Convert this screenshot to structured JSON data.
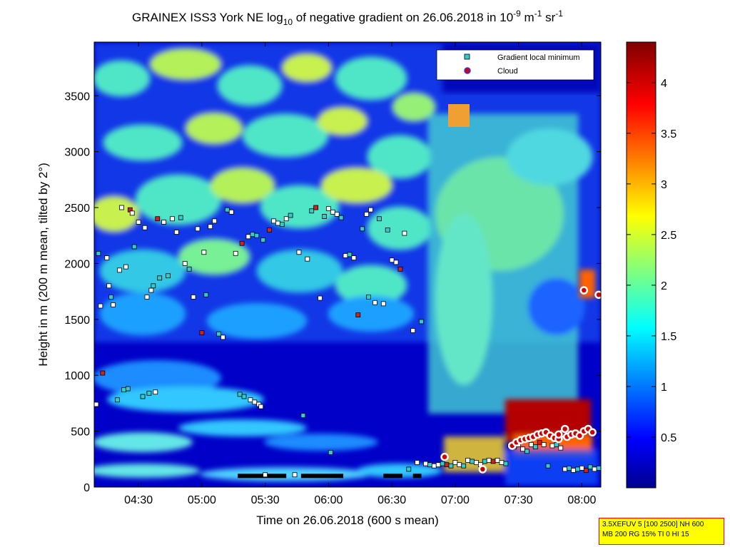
{
  "chart_data": {
    "type": "heatmap",
    "title_parts": {
      "pre": "GRAINEX ISS3 York NE log",
      "sub10": "10",
      "mid": " of negative gradient on 26.06.2018 in 10",
      "supexp": "-9",
      "m": " m",
      "supm": "-1",
      "sr": " sr",
      "supsr": "-1"
    },
    "xlabel": "Time on 26.06.2018 (600 s mean)",
    "ylabel": "Height in m (200 m mean, tilted by 2°)",
    "xlim": [
      "04:09",
      "08:09"
    ],
    "ylim": [
      0,
      3980
    ],
    "x_ticks": [
      "04:30",
      "05:00",
      "05:30",
      "06:00",
      "06:30",
      "07:00",
      "07:30",
      "08:00"
    ],
    "y_ticks": [
      "0",
      "500",
      "1000",
      "1500",
      "2000",
      "2500",
      "3000",
      "3500"
    ],
    "colorbar": {
      "ticks": [
        "0.5",
        "1",
        "1.5",
        "2",
        "2.5",
        "3",
        "3.5",
        "4"
      ],
      "range": [
        0,
        4.4
      ],
      "colormap": "jet"
    },
    "legend": {
      "placement": "top-right",
      "entries": [
        {
          "label": "Gradient local minimum",
          "marker": "square",
          "color": "#33cccc"
        },
        {
          "label": "Cloud",
          "marker": "circle",
          "color": "#cc0000"
        }
      ]
    },
    "series_gradient_min": [
      [
        "04:10",
        740
      ],
      [
        "04:11",
        2090
      ],
      [
        "04:12",
        1620
      ],
      [
        "04:13",
        1020
      ],
      [
        "04:15",
        2050
      ],
      [
        "04:16",
        1800
      ],
      [
        "04:17",
        1700
      ],
      [
        "04:18",
        1630
      ],
      [
        "04:20",
        780
      ],
      [
        "04:21",
        1940
      ],
      [
        "04:22",
        2500
      ],
      [
        "04:23",
        870
      ],
      [
        "04:24",
        1970
      ],
      [
        "04:25",
        880
      ],
      [
        "04:26",
        2480
      ],
      [
        "04:27",
        2450
      ],
      [
        "04:28",
        2150
      ],
      [
        "04:30",
        2370
      ],
      [
        "04:32",
        810
      ],
      [
        "04:33",
        2320
      ],
      [
        "04:34",
        1700
      ],
      [
        "04:35",
        840
      ],
      [
        "04:36",
        1760
      ],
      [
        "04:37",
        1800
      ],
      [
        "04:38",
        850
      ],
      [
        "04:39",
        2400
      ],
      [
        "04:40",
        1870
      ],
      [
        "04:42",
        2370
      ],
      [
        "04:44",
        1890
      ],
      [
        "04:46",
        2400
      ],
      [
        "04:48",
        2280
      ],
      [
        "04:50",
        2410
      ],
      [
        "04:52",
        2000
      ],
      [
        "04:54",
        1950
      ],
      [
        "04:56",
        1700
      ],
      [
        "04:58",
        2310
      ],
      [
        "05:00",
        1380
      ],
      [
        "05:01",
        2100
      ],
      [
        "05:02",
        1720
      ],
      [
        "05:04",
        2330
      ],
      [
        "05:06",
        2380
      ],
      [
        "05:08",
        1370
      ],
      [
        "05:10",
        1340
      ],
      [
        "05:12",
        2480
      ],
      [
        "05:14",
        2460
      ],
      [
        "05:16",
        2090
      ],
      [
        "05:18",
        830
      ],
      [
        "05:19",
        2180
      ],
      [
        "05:20",
        810
      ],
      [
        "05:22",
        2240
      ],
      [
        "05:23",
        780
      ],
      [
        "05:24",
        2260
      ],
      [
        "05:25",
        760
      ],
      [
        "05:26",
        2250
      ],
      [
        "05:27",
        740
      ],
      [
        "05:28",
        720
      ],
      [
        "05:29",
        2210
      ],
      [
        "05:30",
        110
      ],
      [
        "05:32",
        2300
      ],
      [
        "05:34",
        2380
      ],
      [
        "05:36",
        2360
      ],
      [
        "05:38",
        2350
      ],
      [
        "05:40",
        2400
      ],
      [
        "05:42",
        2430
      ],
      [
        "05:44",
        110
      ],
      [
        "05:46",
        2100
      ],
      [
        "05:48",
        640
      ],
      [
        "05:50",
        2040
      ],
      [
        "05:52",
        2470
      ],
      [
        "05:54",
        2500
      ],
      [
        "05:56",
        1690
      ],
      [
        "05:58",
        2420
      ],
      [
        "06:00",
        2490
      ],
      [
        "06:01",
        310
      ],
      [
        "06:02",
        2460
      ],
      [
        "06:04",
        2440
      ],
      [
        "06:06",
        2410
      ],
      [
        "06:08",
        2070
      ],
      [
        "06:10",
        2080
      ],
      [
        "06:12",
        2050
      ],
      [
        "06:14",
        1540
      ],
      [
        "06:16",
        2310
      ],
      [
        "06:18",
        2440
      ],
      [
        "06:19",
        1700
      ],
      [
        "06:20",
        2480
      ],
      [
        "06:22",
        1650
      ],
      [
        "06:24",
        2400
      ],
      [
        "06:26",
        1640
      ],
      [
        "06:28",
        2300
      ],
      [
        "06:30",
        2030
      ],
      [
        "06:32",
        2010
      ],
      [
        "06:34",
        1950
      ],
      [
        "06:36",
        2270
      ],
      [
        "06:38",
        160
      ],
      [
        "06:40",
        1400
      ],
      [
        "06:42",
        220
      ],
      [
        "06:44",
        1480
      ],
      [
        "06:46",
        210
      ],
      [
        "06:48",
        200
      ],
      [
        "06:50",
        190
      ],
      [
        "06:52",
        200
      ],
      [
        "06:54",
        210
      ],
      [
        "06:56",
        200
      ],
      [
        "06:58",
        190
      ],
      [
        "07:00",
        220
      ],
      [
        "07:02",
        200
      ],
      [
        "07:04",
        190
      ],
      [
        "07:06",
        240
      ],
      [
        "07:08",
        230
      ],
      [
        "07:10",
        220
      ],
      [
        "07:12",
        200
      ],
      [
        "07:14",
        230
      ],
      [
        "07:16",
        240
      ],
      [
        "07:18",
        230
      ],
      [
        "07:20",
        240
      ],
      [
        "07:22",
        220
      ],
      [
        "07:24",
        210
      ],
      [
        "07:26",
        370
      ],
      [
        "07:28",
        360
      ],
      [
        "07:30",
        380
      ],
      [
        "07:32",
        340
      ],
      [
        "07:34",
        320
      ],
      [
        "07:36",
        380
      ],
      [
        "07:38",
        360
      ],
      [
        "07:40",
        400
      ],
      [
        "07:42",
        380
      ],
      [
        "07:44",
        190
      ],
      [
        "07:46",
        370
      ],
      [
        "07:48",
        380
      ],
      [
        "07:50",
        350
      ],
      [
        "07:52",
        160
      ],
      [
        "07:54",
        170
      ],
      [
        "07:56",
        150
      ],
      [
        "07:58",
        160
      ],
      [
        "08:00",
        170
      ],
      [
        "08:02",
        150
      ],
      [
        "08:04",
        180
      ],
      [
        "08:06",
        160
      ],
      [
        "08:08",
        170
      ]
    ],
    "series_gradient_min_lines": [
      {
        "height": 100,
        "from": "05:17",
        "to": "05:40"
      },
      {
        "height": 100,
        "from": "05:47",
        "to": "06:07"
      },
      {
        "height": 100,
        "from": "06:26",
        "to": "06:35"
      },
      {
        "height": 100,
        "from": "06:40",
        "to": "06:44"
      }
    ],
    "series_cloud": [
      [
        "06:55",
        270
      ],
      [
        "07:13",
        160
      ],
      [
        "07:27",
        370
      ],
      [
        "07:29",
        400
      ],
      [
        "07:31",
        420
      ],
      [
        "07:33",
        430
      ],
      [
        "07:35",
        440
      ],
      [
        "07:37",
        450
      ],
      [
        "07:39",
        470
      ],
      [
        "07:41",
        480
      ],
      [
        "07:43",
        490
      ],
      [
        "07:45",
        460
      ],
      [
        "07:47",
        440
      ],
      [
        "07:49",
        430
      ],
      [
        "07:51",
        480
      ],
      [
        "07:53",
        450
      ],
      [
        "07:55",
        470
      ],
      [
        "07:57",
        480
      ],
      [
        "07:59",
        460
      ],
      [
        "08:01",
        500
      ],
      [
        "08:03",
        520
      ],
      [
        "08:05",
        490
      ],
      [
        "08:01",
        1760
      ],
      [
        "08:08",
        1720
      ],
      [
        "07:49",
        470
      ],
      [
        "07:52",
        520
      ]
    ]
  },
  "info_box": {
    "line1": "3.5XEFUV 5 [100 2500] NH 600",
    "line2": "MB 200 RG 15% TI 0 HI 15"
  }
}
